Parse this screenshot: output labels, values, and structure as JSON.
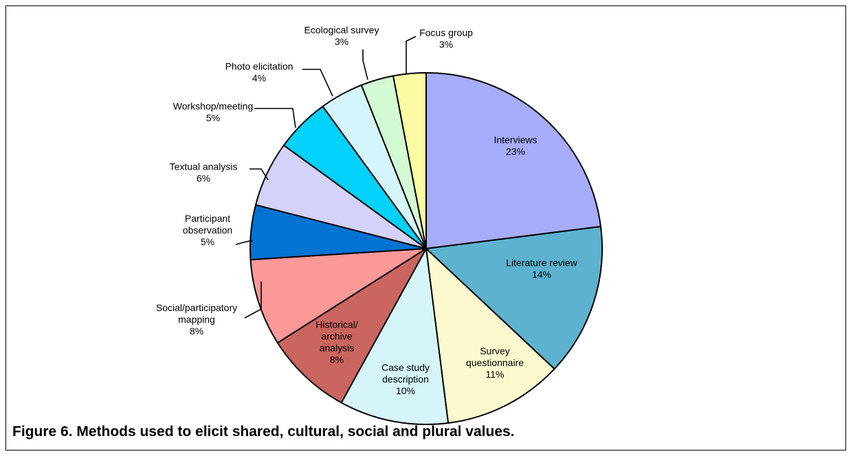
{
  "caption": "Figure 6. Methods used to elicit shared, cultural, social and plural values.",
  "chart_data": {
    "type": "pie",
    "start": "12 o'clock",
    "direction": "clockwise",
    "slices": [
      {
        "label": [
          "Interviews",
          "23%"
        ],
        "value": 23,
        "color": "#a7acfb"
      },
      {
        "label": [
          "Literature review",
          "14%"
        ],
        "value": 14,
        "color": "#5db3cf"
      },
      {
        "label": [
          "Survey",
          "questionnaire",
          "11%"
        ],
        "value": 11,
        "color": "#fdf9cf"
      },
      {
        "label": [
          "Case study",
          "description",
          "10%"
        ],
        "value": 10,
        "color": "#d5f5fb"
      },
      {
        "label": [
          "Historical/",
          "archive",
          "analysis",
          "8%"
        ],
        "value": 8,
        "color": "#cb6560"
      },
      {
        "label": [
          "Social/participatory",
          "mapping",
          "8%"
        ],
        "value": 8,
        "color": "#fb9898"
      },
      {
        "label": [
          "Participant",
          "observation",
          "5%"
        ],
        "value": 5,
        "color": "#0473d2"
      },
      {
        "label": [
          "Textual analysis",
          "6%"
        ],
        "value": 6,
        "color": "#d3d2fb"
      },
      {
        "label": [
          "Workshop/meeting",
          "5%"
        ],
        "value": 5,
        "color": "#02d1fb"
      },
      {
        "label": [
          "Photo elicitation",
          "4%"
        ],
        "value": 4,
        "color": "#d5f5fc"
      },
      {
        "label": [
          "Ecological survey",
          "3%"
        ],
        "value": 3,
        "color": "#d3fad3"
      },
      {
        "label": [
          "Focus group",
          "3%"
        ],
        "value": 3,
        "color": "#fcfba4"
      }
    ]
  }
}
